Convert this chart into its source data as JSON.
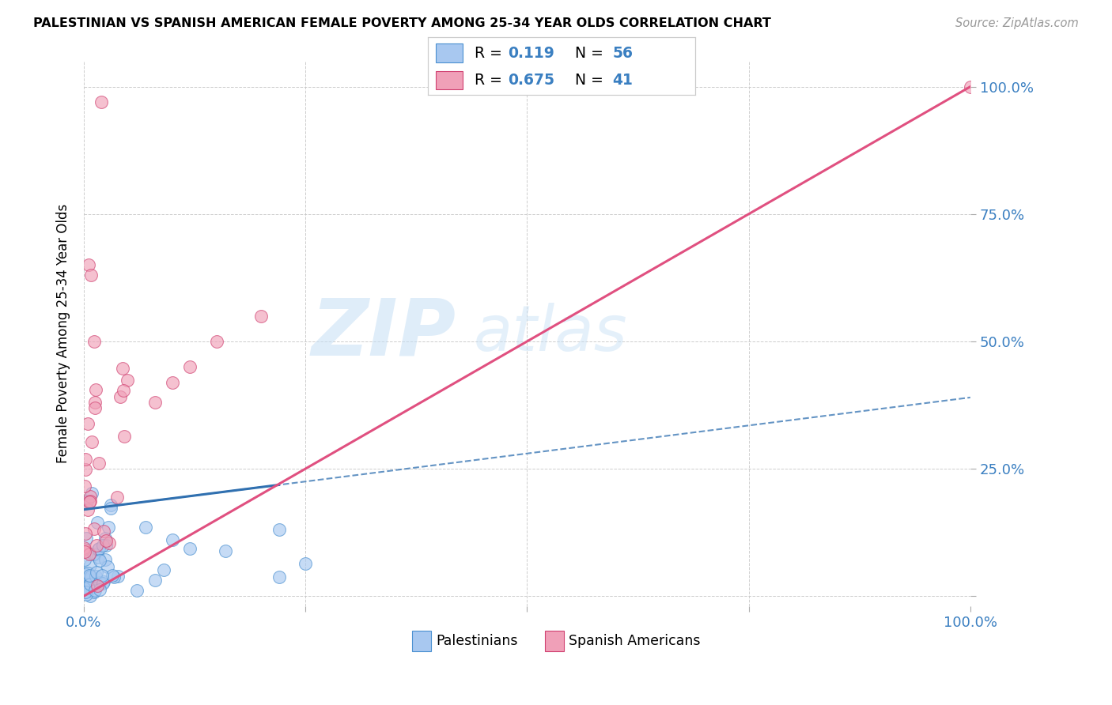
{
  "title": "PALESTINIAN VS SPANISH AMERICAN FEMALE POVERTY AMONG 25-34 YEAR OLDS CORRELATION CHART",
  "source": "Source: ZipAtlas.com",
  "ylabel": "Female Poverty Among 25-34 Year Olds",
  "xlim": [
    0,
    1
  ],
  "ylim": [
    -0.02,
    1.05
  ],
  "ytick_positions": [
    0,
    0.25,
    0.5,
    0.75,
    1.0
  ],
  "ytick_labels": [
    "",
    "25.0%",
    "50.0%",
    "75.0%",
    "100.0%"
  ],
  "xtick_positions": [
    0,
    0.25,
    0.5,
    0.75,
    1.0
  ],
  "xtick_labels": [
    "0.0%",
    "",
    "",
    "",
    "100.0%"
  ],
  "grid_color": "#c8c8c8",
  "watermark_zip": "ZIP",
  "watermark_atlas": "atlas",
  "palestinians_fill": "#a8c8f0",
  "palestinians_edge": "#4a90d0",
  "spanish_fill": "#f0a0b8",
  "spanish_edge": "#d04070",
  "pal_line_color": "#3070b0",
  "spa_line_color": "#e05080",
  "R_pal": "0.119",
  "N_pal": "56",
  "R_spa": "0.675",
  "N_spa": "41",
  "accent_blue": "#3a7fc1",
  "background_color": "#ffffff",
  "legend_label_pal": "Palestinians",
  "legend_label_spa": "Spanish Americans"
}
